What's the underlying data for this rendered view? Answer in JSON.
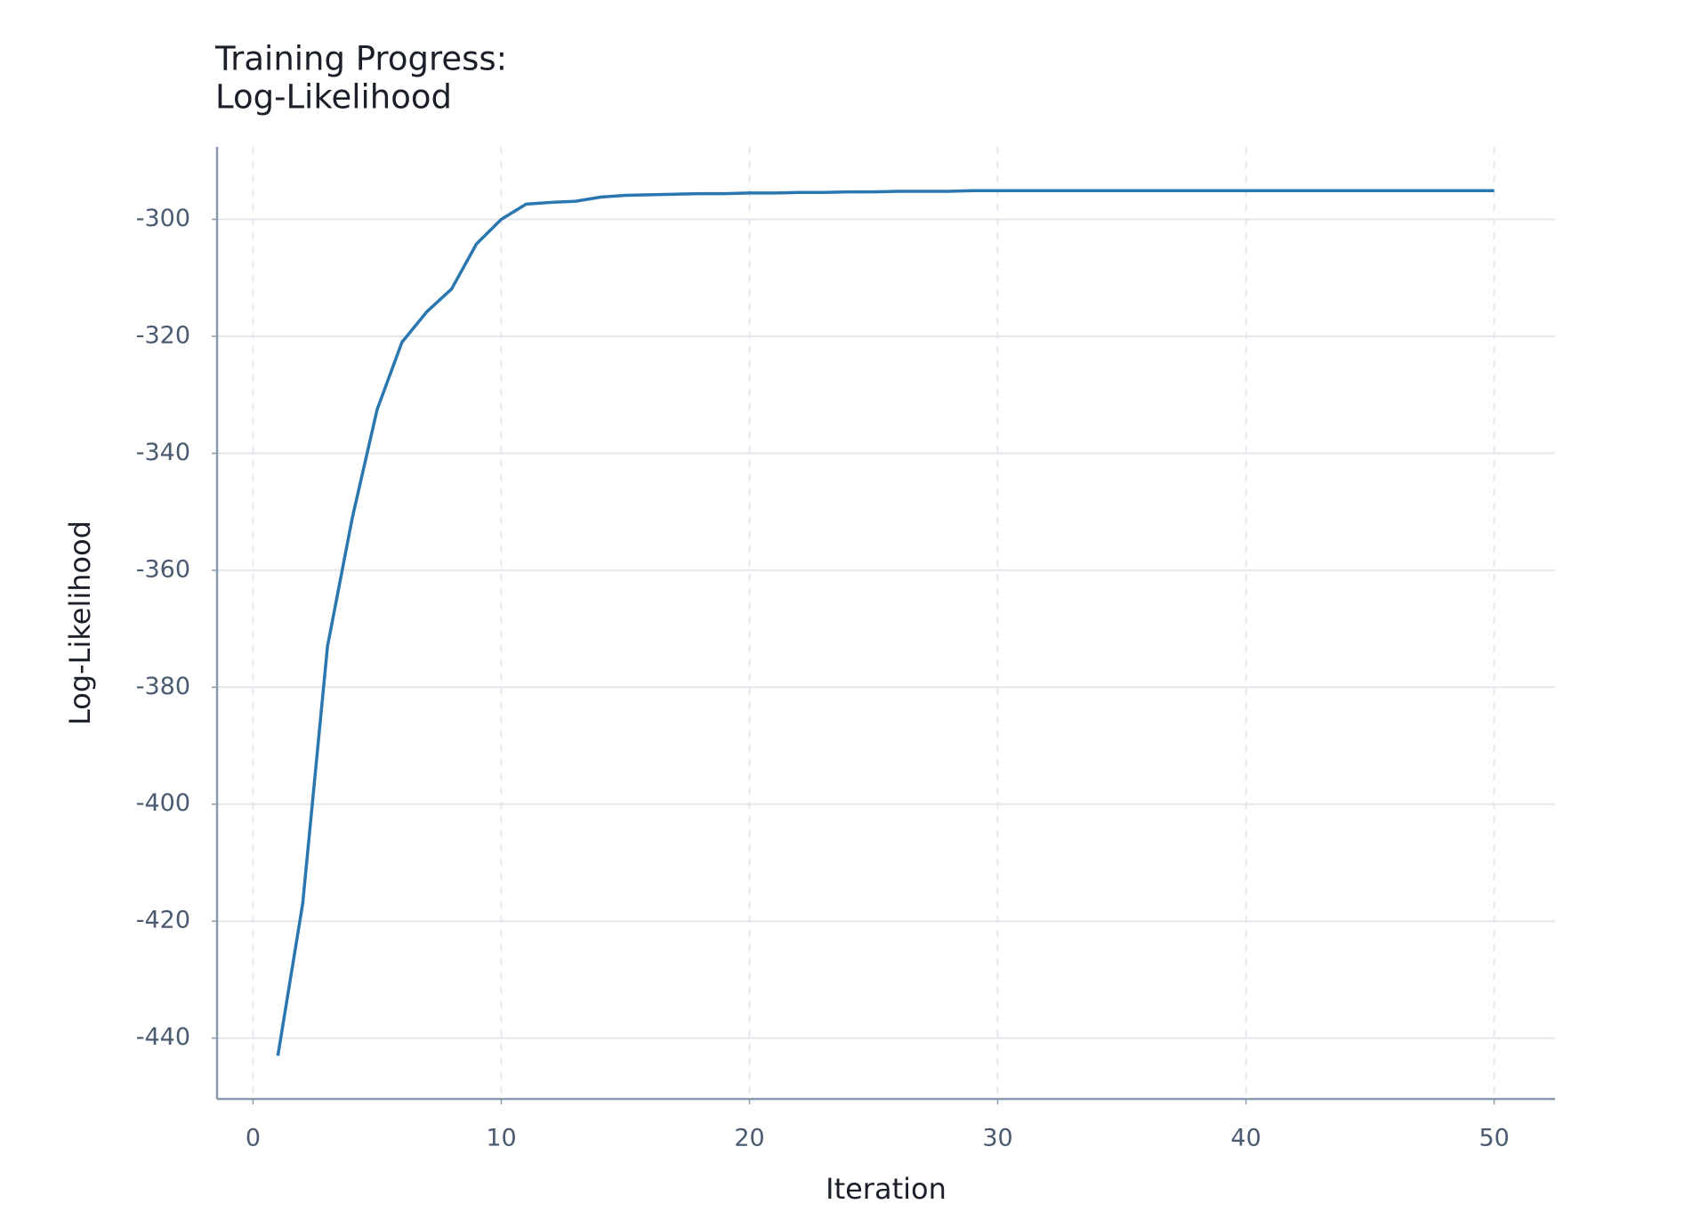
{
  "chart_data": {
    "type": "line",
    "title": [
      "Training Progress:",
      "Log-Likelihood"
    ],
    "x_label": "Iteration",
    "y_label": "Log-Likelihood",
    "x": [
      1,
      2,
      3,
      4,
      5,
      6,
      7,
      8,
      9,
      10,
      11,
      12,
      13,
      14,
      15,
      16,
      17,
      18,
      19,
      20,
      21,
      22,
      23,
      24,
      25,
      26,
      27,
      28,
      29,
      30,
      31,
      32,
      33,
      34,
      35,
      36,
      37,
      38,
      39,
      40,
      41,
      42,
      43,
      44,
      45,
      46,
      47,
      48,
      49,
      50
    ],
    "values": [
      -443,
      -417,
      -373,
      -351,
      -332.5,
      -321,
      -315.8,
      -311.9,
      -304.2,
      -300,
      -297.4,
      -297.1,
      -296.9,
      -296.2,
      -295.9,
      -295.8,
      -295.7,
      -295.6,
      -295.6,
      -295.5,
      -295.5,
      -295.4,
      -295.4,
      -295.3,
      -295.3,
      -295.2,
      -295.2,
      -295.2,
      -295.1,
      -295.1,
      -295.1,
      -295.1,
      -295.1,
      -295.1,
      -295.1,
      -295.1,
      -295.1,
      -295.1,
      -295.1,
      -295.1,
      -295.1,
      -295.1,
      -295.1,
      -295.1,
      -295.1,
      -295.1,
      -295.1,
      -295.1,
      -295.1,
      -295.1
    ],
    "color": "#2a77b0",
    "xlim": [
      -1.45,
      52.45
    ],
    "ylim": [
      -450.4,
      -287.6
    ],
    "xticks": [
      0,
      10,
      20,
      30,
      40,
      50
    ],
    "yticks": [
      -440,
      -420,
      -400,
      -380,
      -360,
      -340,
      -320,
      -300
    ],
    "grid": true
  }
}
